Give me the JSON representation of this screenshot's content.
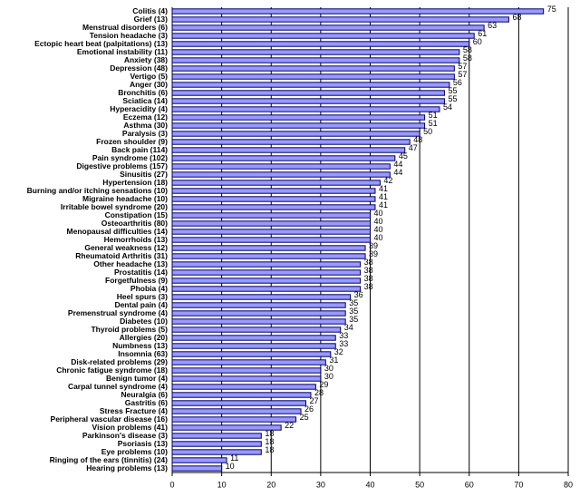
{
  "chart_data": {
    "type": "bar",
    "orientation": "horizontal",
    "categories": [
      "Colitis (4)",
      "Grief (13)",
      "Menstrual disorders (6)",
      "Tension headache (3)",
      "Ectopic heart beat (palpitations) (13)",
      "Emotional instability (11)",
      "Anxiety (38)",
      "Depression (48)",
      "Vertigo (5)",
      "Anger (30)",
      "Bronchitis (6)",
      "Sciatica (14)",
      "Hyperacidity (4)",
      "Eczema (12)",
      "Asthma (30)",
      "Paralysis (3)",
      "Frozen shoulder (9)",
      "Back pain (114)",
      "Pain syndrome (102)",
      "Digestive problems (157)",
      "Sinusitis (27)",
      "Hypertension (18)",
      "Burning and/or itching sensations (10)",
      "Migraine headache (10)",
      "Irritable bowel syndrome (20)",
      "Constipation (15)",
      "Osteoarthritis (80)",
      "Menopausal difficulties (14)",
      "Hemorrhoids (13)",
      "General weakness (12)",
      "Rheumatoid Arthritis (31)",
      "Other headache (13)",
      "Prostatitis (14)",
      "Forgetfulness (9)",
      "Phobia (4)",
      "Heel spurs (3)",
      "Dental pain (4)",
      "Premenstrual syndrome (4)",
      "Diabetes (10)",
      "Thyroid problems (5)",
      "Allergies (20)",
      "Numbness (13)",
      "Insomnia (63)",
      "Disk-related problems (29)",
      "Chronic fatigue syndrome (18)",
      "Benign tumor (4)",
      "Carpal tunnel syndrome (4)",
      "Neuralgia (6)",
      "Gastritis (6)",
      "Stress Fracture (4)",
      "Peripheral vascular disease (16)",
      "Vision problems (41)",
      "Parkinson's disease (3)",
      "Psoriasis (13)",
      "Eye problems (10)",
      "Ringing of the ears (tinnitis) (24)",
      "Hearing problems (13)"
    ],
    "values": [
      75,
      68,
      63,
      61,
      60,
      58,
      58,
      57,
      57,
      56,
      55,
      55,
      54,
      51,
      51,
      50,
      48,
      47,
      45,
      44,
      44,
      42,
      41,
      41,
      41,
      40,
      40,
      40,
      40,
      39,
      39,
      38,
      38,
      38,
      38,
      36,
      35,
      35,
      35,
      34,
      33,
      33,
      32,
      31,
      30,
      30,
      29,
      28,
      27,
      26,
      25,
      22,
      18,
      18,
      18,
      11,
      10
    ],
    "color": "#9999ff",
    "xlim": [
      0,
      80
    ],
    "xticks": [
      0,
      10,
      20,
      30,
      40,
      50,
      60,
      70,
      80
    ],
    "grid": true
  }
}
